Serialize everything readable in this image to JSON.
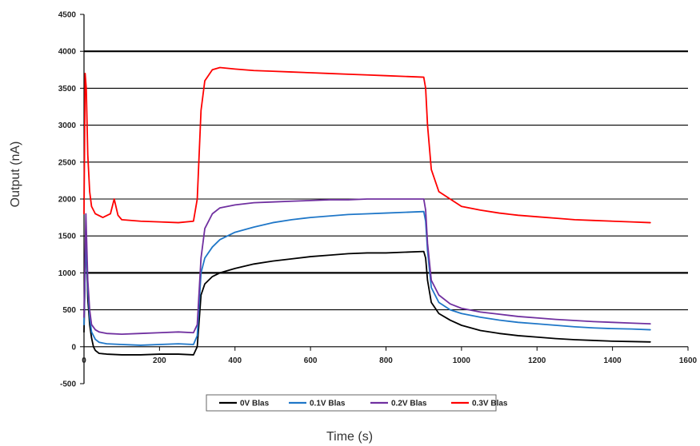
{
  "chart_data": {
    "type": "line",
    "title": "",
    "xlabel": "Time  (s)",
    "ylabel": "Output (nA)",
    "xlim": [
      0,
      1600
    ],
    "ylim": [
      -500,
      4500
    ],
    "x_ticks": [
      0,
      200,
      400,
      600,
      800,
      1000,
      1200,
      1400,
      1600
    ],
    "x_tick_labels": [
      "0",
      "200",
      "400",
      "600",
      "800",
      "1000",
      "1200",
      "1400",
      "1600"
    ],
    "y_ticks": [
      -500,
      0,
      500,
      1000,
      1500,
      2000,
      2500,
      3000,
      3500,
      4000,
      4500
    ],
    "y_tick_labels": [
      "-500",
      "0",
      "500",
      "1000",
      "1500",
      "2000",
      "2500",
      "3000",
      "3500",
      "4000",
      "4500"
    ],
    "grid": true,
    "legend_position": "bottom",
    "series": [
      {
        "name": "0V Bias",
        "legend_label": "0V Blas",
        "color": "#000000",
        "points": [
          [
            0,
            200
          ],
          [
            5,
            1600
          ],
          [
            10,
            650
          ],
          [
            15,
            300
          ],
          [
            20,
            120
          ],
          [
            25,
            0
          ],
          [
            30,
            -50
          ],
          [
            40,
            -90
          ],
          [
            60,
            -100
          ],
          [
            100,
            -110
          ],
          [
            150,
            -110
          ],
          [
            200,
            -100
          ],
          [
            250,
            -100
          ],
          [
            290,
            -110
          ],
          [
            300,
            0
          ],
          [
            310,
            700
          ],
          [
            320,
            850
          ],
          [
            340,
            950
          ],
          [
            360,
            1000
          ],
          [
            400,
            1060
          ],
          [
            450,
            1120
          ],
          [
            500,
            1160
          ],
          [
            550,
            1190
          ],
          [
            600,
            1220
          ],
          [
            650,
            1240
          ],
          [
            700,
            1260
          ],
          [
            750,
            1270
          ],
          [
            800,
            1270
          ],
          [
            850,
            1280
          ],
          [
            900,
            1290
          ],
          [
            905,
            1200
          ],
          [
            910,
            900
          ],
          [
            920,
            600
          ],
          [
            940,
            450
          ],
          [
            970,
            360
          ],
          [
            1000,
            290
          ],
          [
            1050,
            220
          ],
          [
            1100,
            180
          ],
          [
            1150,
            150
          ],
          [
            1200,
            130
          ],
          [
            1250,
            110
          ],
          [
            1300,
            95
          ],
          [
            1350,
            85
          ],
          [
            1400,
            75
          ],
          [
            1450,
            70
          ],
          [
            1500,
            65
          ]
        ]
      },
      {
        "name": "0.1V Bias",
        "legend_label": "0.1V Blas",
        "color": "#1f77c8",
        "points": [
          [
            0,
            300
          ],
          [
            5,
            1500
          ],
          [
            10,
            800
          ],
          [
            15,
            400
          ],
          [
            20,
            200
          ],
          [
            30,
            100
          ],
          [
            40,
            60
          ],
          [
            60,
            40
          ],
          [
            100,
            30
          ],
          [
            150,
            20
          ],
          [
            200,
            30
          ],
          [
            250,
            40
          ],
          [
            290,
            30
          ],
          [
            300,
            150
          ],
          [
            310,
            1000
          ],
          [
            320,
            1200
          ],
          [
            340,
            1350
          ],
          [
            360,
            1450
          ],
          [
            400,
            1550
          ],
          [
            450,
            1620
          ],
          [
            500,
            1680
          ],
          [
            550,
            1720
          ],
          [
            600,
            1750
          ],
          [
            650,
            1770
          ],
          [
            700,
            1790
          ],
          [
            750,
            1800
          ],
          [
            800,
            1810
          ],
          [
            850,
            1820
          ],
          [
            900,
            1830
          ],
          [
            905,
            1700
          ],
          [
            910,
            1300
          ],
          [
            920,
            800
          ],
          [
            940,
            600
          ],
          [
            970,
            500
          ],
          [
            1000,
            450
          ],
          [
            1050,
            400
          ],
          [
            1100,
            360
          ],
          [
            1150,
            330
          ],
          [
            1200,
            310
          ],
          [
            1250,
            290
          ],
          [
            1300,
            270
          ],
          [
            1350,
            255
          ],
          [
            1400,
            245
          ],
          [
            1450,
            240
          ],
          [
            1500,
            230
          ]
        ]
      },
      {
        "name": "0.2V Bias",
        "legend_label": "0.2V Blas",
        "color": "#7030a0",
        "points": [
          [
            0,
            400
          ],
          [
            5,
            1800
          ],
          [
            10,
            900
          ],
          [
            15,
            500
          ],
          [
            20,
            300
          ],
          [
            30,
            230
          ],
          [
            40,
            200
          ],
          [
            60,
            180
          ],
          [
            100,
            170
          ],
          [
            150,
            180
          ],
          [
            200,
            190
          ],
          [
            250,
            200
          ],
          [
            290,
            190
          ],
          [
            300,
            300
          ],
          [
            310,
            1200
          ],
          [
            320,
            1600
          ],
          [
            340,
            1800
          ],
          [
            360,
            1880
          ],
          [
            400,
            1920
          ],
          [
            450,
            1950
          ],
          [
            500,
            1960
          ],
          [
            550,
            1970
          ],
          [
            600,
            1980
          ],
          [
            650,
            1990
          ],
          [
            700,
            1990
          ],
          [
            750,
            2000
          ],
          [
            800,
            2000
          ],
          [
            850,
            2000
          ],
          [
            900,
            2000
          ],
          [
            905,
            1850
          ],
          [
            910,
            1400
          ],
          [
            920,
            900
          ],
          [
            940,
            700
          ],
          [
            970,
            580
          ],
          [
            1000,
            520
          ],
          [
            1050,
            470
          ],
          [
            1100,
            440
          ],
          [
            1150,
            410
          ],
          [
            1200,
            390
          ],
          [
            1250,
            370
          ],
          [
            1300,
            355
          ],
          [
            1350,
            340
          ],
          [
            1400,
            330
          ],
          [
            1450,
            320
          ],
          [
            1500,
            310
          ]
        ]
      },
      {
        "name": "0.3V Bias",
        "legend_label": "0.3V Blas",
        "color": "#ff0000",
        "points": [
          [
            0,
            1800
          ],
          [
            3,
            3700
          ],
          [
            6,
            3500
          ],
          [
            10,
            2600
          ],
          [
            15,
            2100
          ],
          [
            20,
            1900
          ],
          [
            30,
            1800
          ],
          [
            50,
            1750
          ],
          [
            70,
            1800
          ],
          [
            80,
            2000
          ],
          [
            90,
            1780
          ],
          [
            100,
            1720
          ],
          [
            150,
            1700
          ],
          [
            200,
            1690
          ],
          [
            250,
            1680
          ],
          [
            290,
            1700
          ],
          [
            300,
            2000
          ],
          [
            310,
            3200
          ],
          [
            320,
            3600
          ],
          [
            340,
            3750
          ],
          [
            360,
            3780
          ],
          [
            400,
            3760
          ],
          [
            450,
            3740
          ],
          [
            500,
            3730
          ],
          [
            550,
            3720
          ],
          [
            600,
            3710
          ],
          [
            650,
            3700
          ],
          [
            700,
            3690
          ],
          [
            750,
            3680
          ],
          [
            800,
            3670
          ],
          [
            850,
            3660
          ],
          [
            900,
            3650
          ],
          [
            905,
            3500
          ],
          [
            910,
            3000
          ],
          [
            920,
            2400
          ],
          [
            940,
            2100
          ],
          [
            970,
            2000
          ],
          [
            1000,
            1900
          ],
          [
            1050,
            1850
          ],
          [
            1100,
            1810
          ],
          [
            1150,
            1780
          ],
          [
            1200,
            1760
          ],
          [
            1250,
            1740
          ],
          [
            1300,
            1720
          ],
          [
            1350,
            1710
          ],
          [
            1400,
            1700
          ],
          [
            1450,
            1690
          ],
          [
            1500,
            1680
          ]
        ]
      }
    ]
  }
}
